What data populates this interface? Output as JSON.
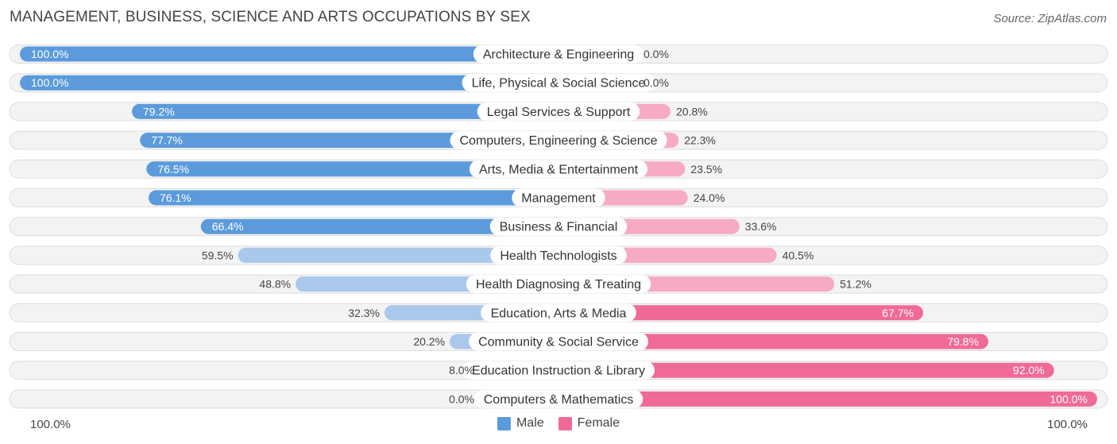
{
  "title": "MANAGEMENT, BUSINESS, SCIENCE AND ARTS OCCUPATIONS BY SEX",
  "source": "Source: ZipAtlas.com",
  "colors": {
    "male_strong": "#5b9bdc",
    "male_light": "#a9c8ec",
    "female_strong": "#f06a96",
    "female_light": "#f7aac3",
    "track": "#efefef"
  },
  "chart_data": {
    "type": "bar",
    "orientation": "horizontal-diverging",
    "categories": [
      "Architecture & Engineering",
      "Life, Physical & Social Science",
      "Legal Services & Support",
      "Computers, Engineering & Science",
      "Arts, Media & Entertainment",
      "Management",
      "Business & Financial",
      "Health Technologists",
      "Health Diagnosing & Treating",
      "Education, Arts & Media",
      "Community & Social Service",
      "Education Instruction & Library",
      "Computers & Mathematics"
    ],
    "series": [
      {
        "name": "Male",
        "values": [
          100.0,
          100.0,
          79.2,
          77.7,
          76.5,
          76.1,
          66.4,
          59.5,
          48.8,
          32.3,
          20.2,
          8.0,
          0.0
        ]
      },
      {
        "name": "Female",
        "values": [
          0.0,
          0.0,
          20.8,
          22.3,
          23.5,
          24.0,
          33.6,
          40.5,
          51.2,
          67.7,
          79.8,
          92.0,
          100.0
        ]
      }
    ],
    "value_labels": {
      "male": [
        "100.0%",
        "100.0%",
        "79.2%",
        "77.7%",
        "76.5%",
        "76.1%",
        "66.4%",
        "59.5%",
        "48.8%",
        "32.3%",
        "20.2%",
        "8.0%",
        "0.0%"
      ],
      "female": [
        "0.0%",
        "0.0%",
        "20.8%",
        "22.3%",
        "23.5%",
        "24.0%",
        "33.6%",
        "40.5%",
        "51.2%",
        "67.7%",
        "79.8%",
        "92.0%",
        "100.0%"
      ]
    },
    "axis": {
      "left_label": "100.0%",
      "right_label": "100.0%",
      "range": [
        0,
        100
      ]
    },
    "legend": {
      "position": "bottom-center",
      "entries": [
        "Male",
        "Female"
      ]
    }
  }
}
